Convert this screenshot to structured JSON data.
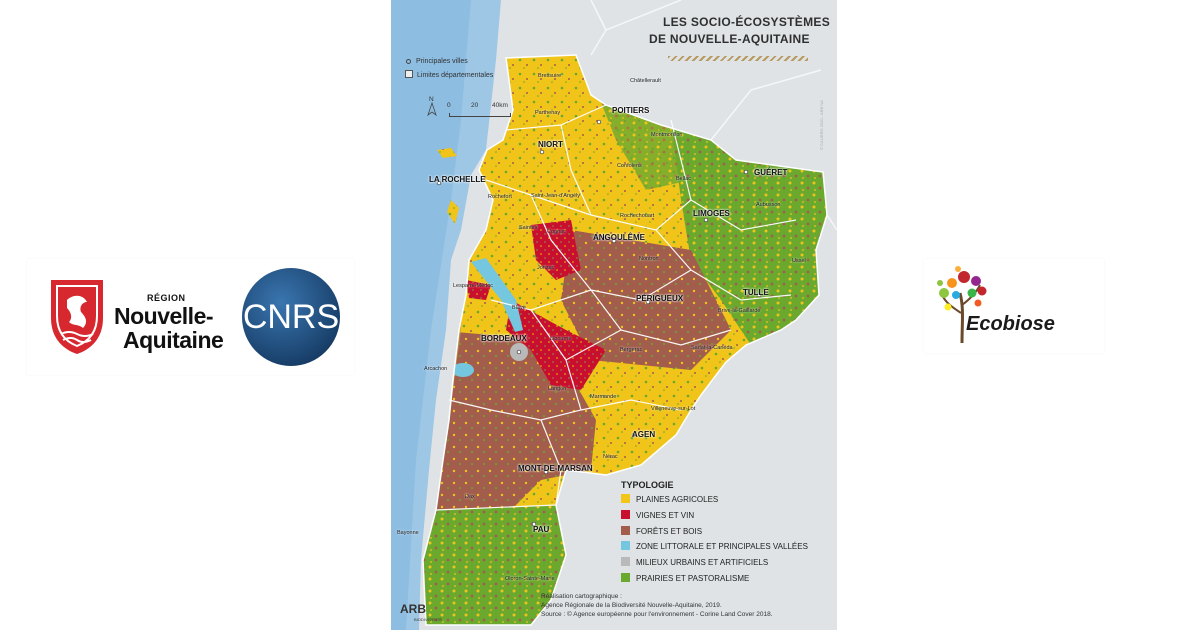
{
  "left_logos": {
    "region_small": "RÉGION",
    "region_name_line1": "Nouvelle-",
    "region_name_line2": "Aquitaine",
    "cnrs": "CNRS",
    "colors": {
      "region_red": "#d7282f",
      "cnrs_blue": "#1e4e7f"
    }
  },
  "map": {
    "title_line1": "LES SOCIO-ÉCOSYSTÈMES",
    "title_line2": "DE NOUVELLE-AQUITAINE",
    "small_legend": {
      "cities": "Principales villes",
      "departments": "Limites départementales"
    },
    "scale": {
      "north": "N",
      "zero": "0",
      "twenty": "20",
      "forty": "40km"
    },
    "major_cities": [
      "POITIERS",
      "NIORT",
      "LA ROCHELLE",
      "GUÉRET",
      "LIMOGES",
      "ANGOULÊME",
      "PÉRIGUEUX",
      "TULLE",
      "BORDEAUX",
      "AGEN",
      "MONT-DE-MARSAN",
      "PAU"
    ],
    "minor_cities": [
      "Bressuire",
      "Châtellerault",
      "Parthenay",
      "Montmorillon",
      "Confolens",
      "Bellac",
      "Rochefort",
      "Saint-Jean-d'Angély",
      "Rochechouart",
      "Aubusson",
      "Saintes",
      "Cognac",
      "Nontron",
      "Ussel",
      "Jonzac",
      "Lesparre-Médoc",
      "Blaye",
      "Brive-la-Gaillarde",
      "Libourne",
      "Sarlat-la-Canéda",
      "Arcachon",
      "Bergerac",
      "Langon",
      "Marmande",
      "Villeneuve-sur-Lot",
      "Nérac",
      "Dax",
      "Bayonne",
      "Oloron-Sainte-Marie"
    ],
    "typology": {
      "title": "TYPOLOGIE",
      "items": [
        {
          "label": "PLAINES AGRICOLES",
          "color": "#f2c618"
        },
        {
          "label": "VIGNES ET VIN",
          "color": "#c8102e"
        },
        {
          "label": "FORÊTS ET BOIS",
          "color": "#a35d4c"
        },
        {
          "label": "ZONE LITTORALE ET PRINCIPALES VALLÉES",
          "color": "#74c7df"
        },
        {
          "label": "MILIEUX URBAINS ET ARTIFICIELS",
          "color": "#b9b9b9"
        },
        {
          "label": "PRAIRIES ET PASTORALISME",
          "color": "#6aa82e"
        }
      ]
    },
    "credits": {
      "line1": "Réalisation cartographique :",
      "line2": "Agence Régionale de la Biodiversité Nouvelle-Aquitaine, 2019.",
      "line3": "Source : © Agence européenne pour l'environnement - Corine Land Cover 2018."
    },
    "arb_logo": "ARB",
    "arb_sub": "BIODIVERSITÉ",
    "copyright": "© CALIBRO 2020 - ARB NA"
  },
  "right_logo": {
    "name": "Ecobiose"
  }
}
